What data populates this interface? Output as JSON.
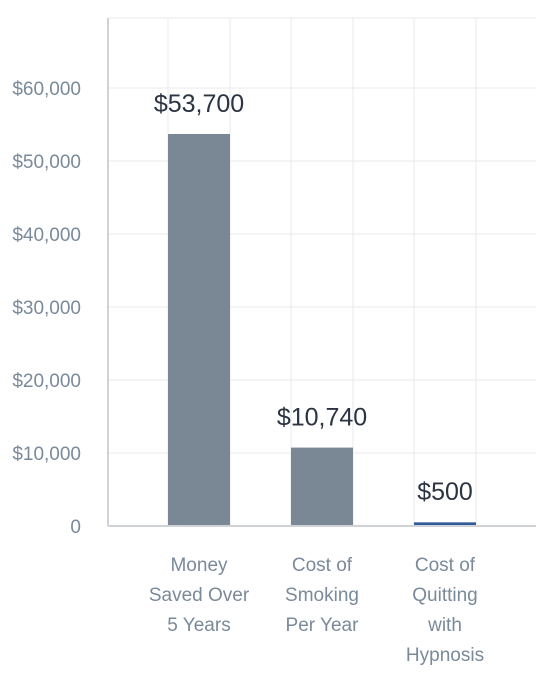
{
  "chart_data": {
    "type": "bar",
    "categories": [
      [
        "Money",
        "Saved Over",
        "5 Years"
      ],
      [
        "Cost of",
        "Smoking",
        "Per Year"
      ],
      [
        "Cost of",
        "Quitting",
        "with",
        "Hypnosis"
      ]
    ],
    "values": [
      53700,
      10740,
      500
    ],
    "data_labels": [
      "$53,700",
      "$10,740",
      "$500"
    ],
    "bar_colors": [
      "#7a8896",
      "#7a8896",
      "#2f5b9a"
    ],
    "ylim": [
      0,
      70000
    ],
    "yticks": [
      0,
      10000,
      20000,
      30000,
      40000,
      50000,
      60000
    ],
    "ytick_labels": [
      "0",
      "$10,000",
      "$20,000",
      "$30,000",
      "$40,000",
      "$50,000",
      "$60,000"
    ],
    "grid": true,
    "title": "",
    "xlabel": "",
    "ylabel": ""
  }
}
